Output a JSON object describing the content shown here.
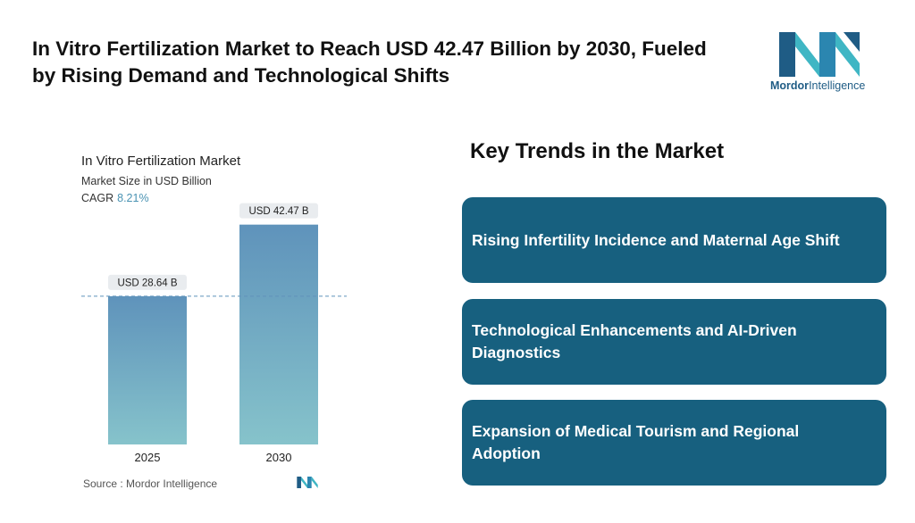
{
  "headline": "In Vitro Fertilization Market to Reach USD 42.47 Billion by 2030, Fueled by Rising Demand and Technological Shifts",
  "logo": {
    "brand_bold": "Mordor",
    "brand_rest": "Intelligence"
  },
  "chart_data": {
    "type": "bar",
    "title": "In Vitro Fertilization Market",
    "subtitle": "Market Size in USD Billion",
    "cagr_label": "CAGR",
    "cagr_value": "8.21%",
    "categories": [
      "2025",
      "2030"
    ],
    "values": [
      28.64,
      42.47
    ],
    "data_labels": [
      "USD 28.64 B",
      "USD 42.47 B"
    ],
    "ylim": [
      0,
      50
    ],
    "xlabel": "",
    "ylabel": "",
    "source": "Source :  Mordor Intelligence"
  },
  "trends": {
    "title": "Key Trends in the Market",
    "items": [
      {
        "label": "Rising Infertility Incidence and Maternal Age Shift"
      },
      {
        "label": "Technological Enhancements and AI-Driven Diagnostics"
      },
      {
        "label": "Expansion of Medical Tourism and Regional Adoption"
      }
    ]
  },
  "colors": {
    "bar_top": "#5f93bb",
    "bar_bottom": "#86c3cb",
    "card_bg": "#17607f",
    "accent": "#4a93b3",
    "logo_dark": "#1f5c85",
    "logo_light": "#3fb6c4"
  }
}
